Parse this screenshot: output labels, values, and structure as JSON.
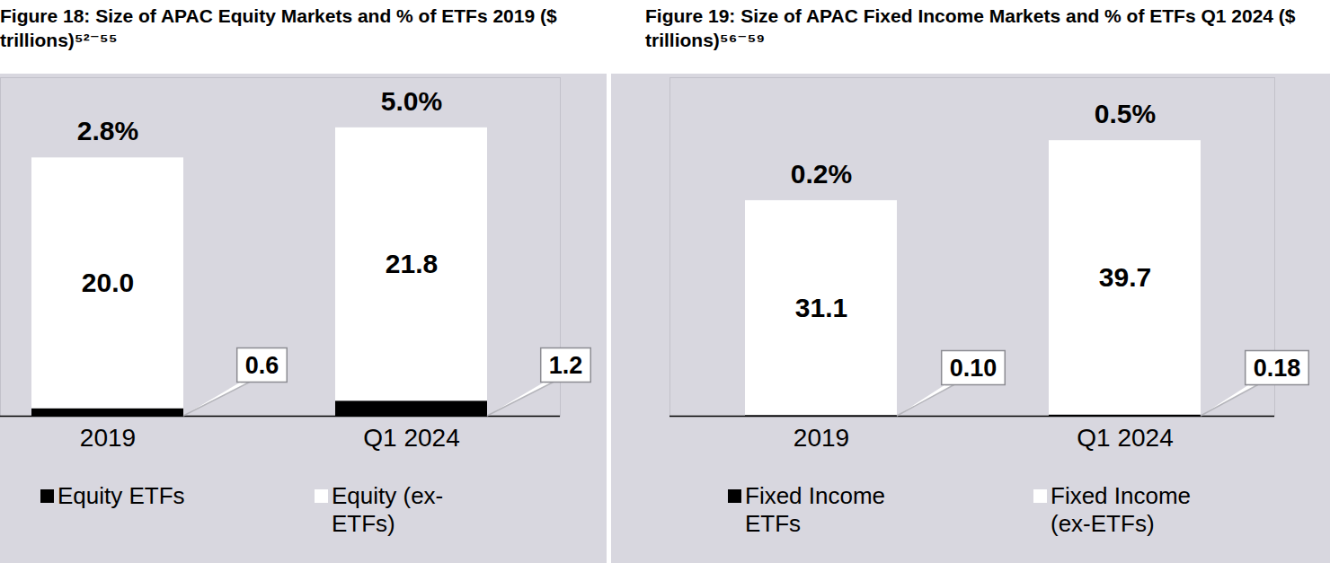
{
  "chart_data": [
    {
      "type": "bar",
      "title": "Figure 18: Size of APAC Equity Markets and % of ETFs 2019 ($ trillions)⁵²⁻⁵⁵",
      "categories": [
        "2019",
        "Q1 2024"
      ],
      "series": [
        {
          "name": "Equity ETFs",
          "color": "#000000",
          "values": [
            0.6,
            1.2
          ]
        },
        {
          "name": "Equity (ex-ETFs)",
          "color": "#ffffff",
          "values": [
            20.0,
            21.8
          ],
          "value_labels": [
            "20.0",
            "21.8"
          ]
        }
      ],
      "annotations": [
        "2.8%",
        "5.0%"
      ],
      "stacked": true,
      "data_labels": true,
      "tick_labels": "x",
      "legend": "bottom",
      "ylim": [
        0,
        27
      ]
    },
    {
      "type": "bar",
      "title": "Figure 19: Size of APAC Fixed Income Markets and % of ETFs Q1 2024 ($ trillions)⁵⁶⁻⁵⁹",
      "categories": [
        "2019",
        "Q1 2024"
      ],
      "series": [
        {
          "name": "Fixed Income ETFs",
          "color": "#000000",
          "values": [
            0.1,
            0.18
          ],
          "value_labels": [
            "0.10",
            "0.18"
          ]
        },
        {
          "name": "Fixed Income (ex-ETFs)",
          "color": "#ffffff",
          "values": [
            31.1,
            39.7
          ],
          "value_labels": [
            "31.1",
            "39.7"
          ]
        }
      ],
      "annotations": [
        "0.2%",
        "0.5%"
      ],
      "stacked": true,
      "data_labels": true,
      "tick_labels": "x",
      "legend": "bottom",
      "ylim": [
        0,
        49
      ]
    }
  ]
}
